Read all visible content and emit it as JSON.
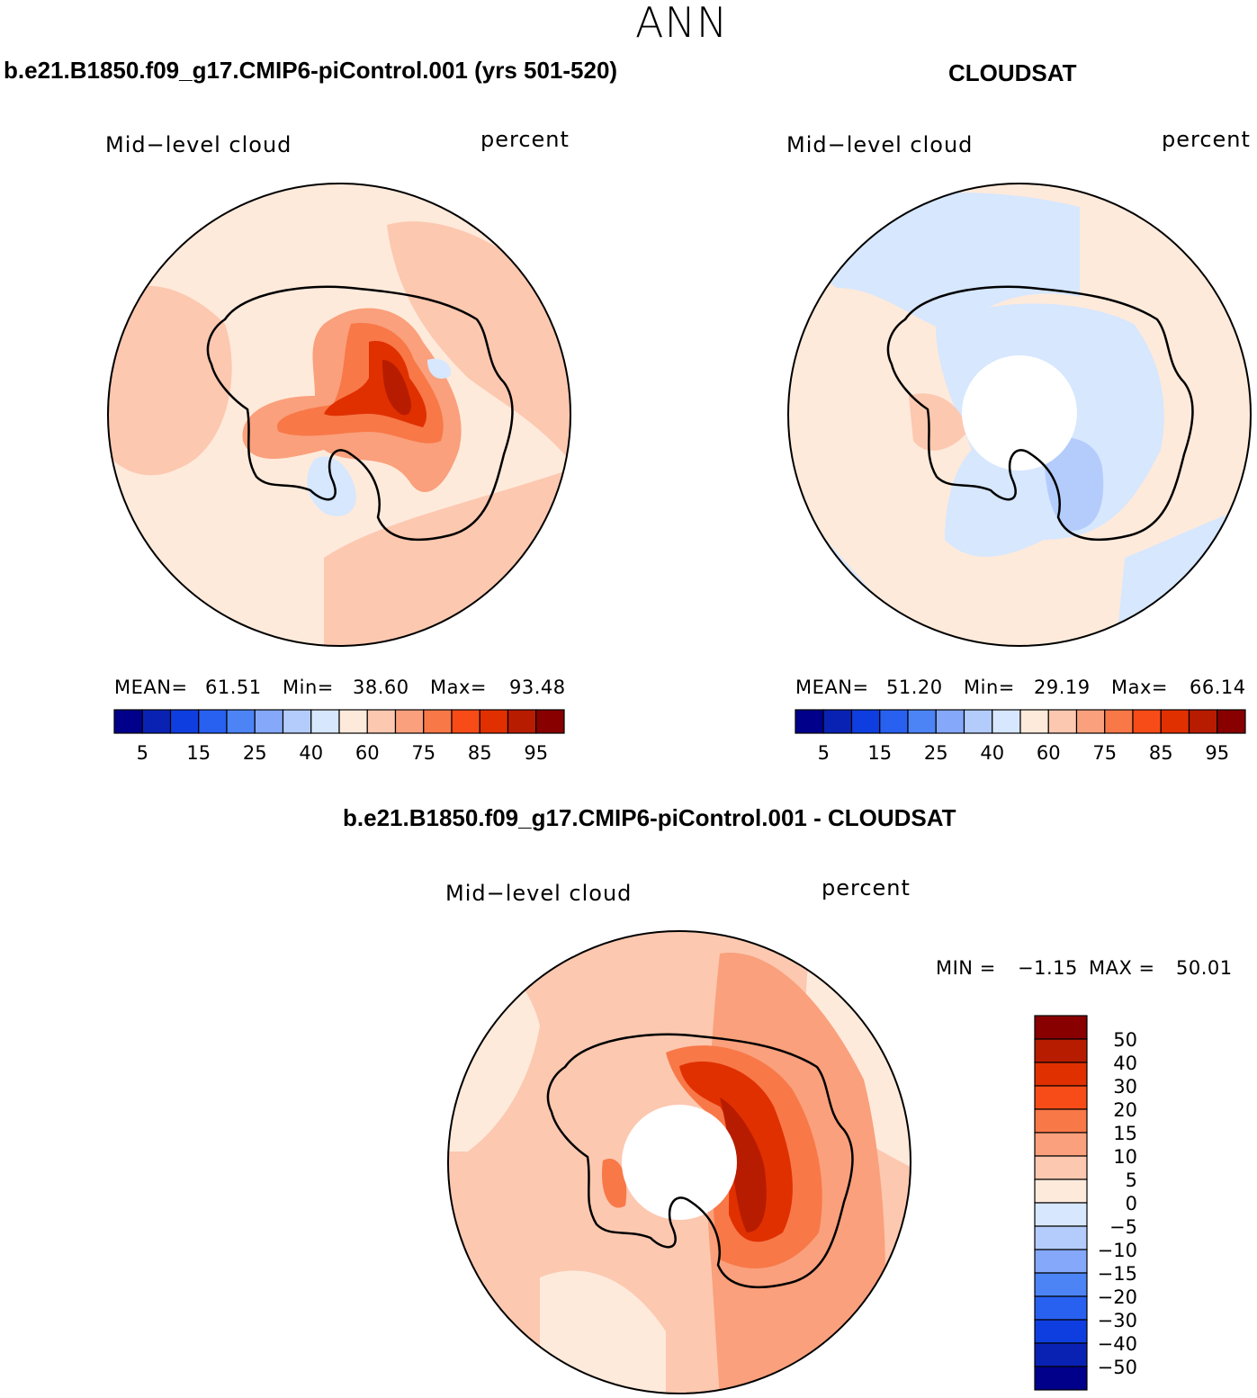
{
  "figure_title": "ANN",
  "panels": [
    {
      "title": "b.e21.B1850.f09_g17.CMIP6-piControl.001 (yrs 501-520)",
      "left_label": "Mid−level cloud",
      "right_label": "percent",
      "stats": {
        "mean_label": "MEAN=",
        "mean": "61.51",
        "min_label": "Min=",
        "min": "38.60",
        "max_label": "Max=",
        "max": "93.48"
      }
    },
    {
      "title": "CLOUDSAT",
      "left_label": "Mid−level cloud",
      "right_label": "percent",
      "stats": {
        "mean_label": "MEAN=",
        "mean": "51.20",
        "min_label": "Min=",
        "min": "29.19",
        "max_label": "Max=",
        "max": "66.14"
      }
    },
    {
      "title": "b.e21.B1850.f09_g17.CMIP6-piControl.001 - CLOUDSAT",
      "left_label": "Mid−level cloud",
      "right_label": "percent",
      "stats": {
        "min_label": "MIN =",
        "min": "−1.15",
        "max_label": "MAX =",
        "max": "50.01"
      }
    }
  ],
  "colorbar_abs": {
    "colors": [
      "#00008b",
      "#0a22b4",
      "#0f3ee0",
      "#2860f0",
      "#4c84f5",
      "#85a8fa",
      "#b4ccfc",
      "#d6e7fe",
      "#feeadb",
      "#fcc8b0",
      "#faa07c",
      "#f87848",
      "#f84c18",
      "#e03000",
      "#b81c00",
      "#880000"
    ],
    "labels": [
      "5",
      "15",
      "25",
      "40",
      "60",
      "75",
      "85",
      "95"
    ]
  },
  "colorbar_diff": {
    "colors_top_to_bottom": [
      "#880000",
      "#b81c00",
      "#e03000",
      "#f84c18",
      "#f87848",
      "#faa07c",
      "#fcc8b0",
      "#feeadb",
      "#d6e7fe",
      "#b4ccfc",
      "#85a8fa",
      "#4c84f5",
      "#2860f0",
      "#0f3ee0",
      "#0a22b4",
      "#00008b"
    ],
    "labels": [
      "50",
      "40",
      "30",
      "20",
      "15",
      "10",
      "5",
      "0",
      "−5",
      "−10",
      "−15",
      "−20",
      "−30",
      "−40",
      "−50"
    ]
  },
  "map_fields": [
    {
      "background": "#feeadb",
      "features": [
        "coastline-antarctica",
        "contour-region-fill"
      ]
    },
    {
      "background": "#feeadb",
      "features": [
        "coastline-antarctica",
        "contour-region-fill",
        "missing-data-pole"
      ]
    },
    {
      "background": "#fcc8b0",
      "features": [
        "coastline-antarctica",
        "contour-region-fill",
        "missing-data-pole"
      ]
    }
  ]
}
